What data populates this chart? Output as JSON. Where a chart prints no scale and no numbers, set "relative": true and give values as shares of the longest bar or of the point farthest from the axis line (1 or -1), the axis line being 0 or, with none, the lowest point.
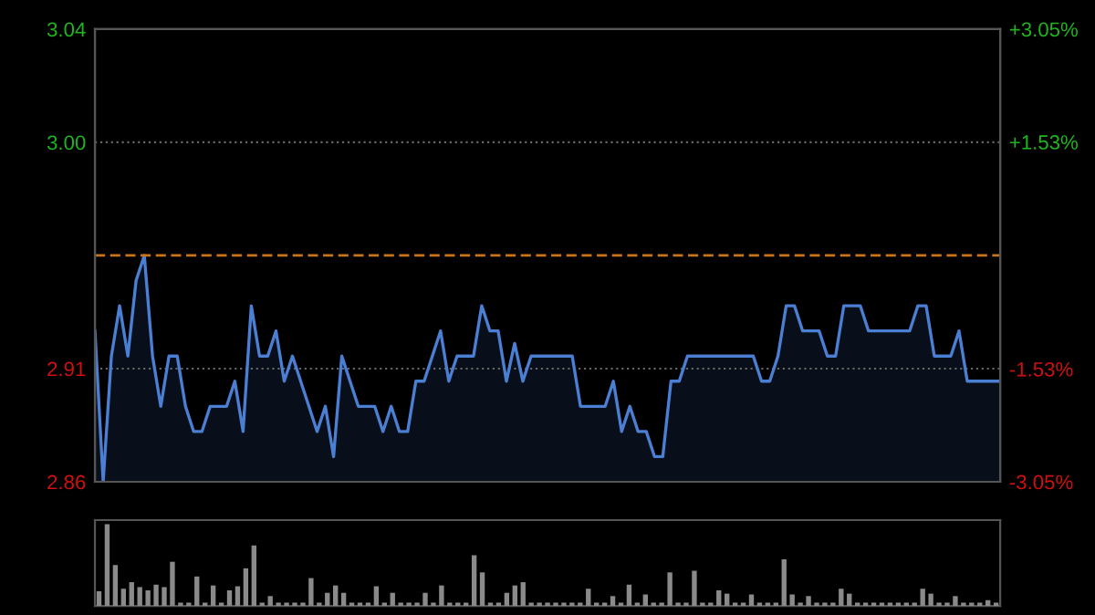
{
  "chart_data": [
    {
      "type": "area",
      "categories": [
        null,
        null,
        null,
        null,
        null,
        null,
        null,
        null,
        null,
        null,
        null,
        null,
        null,
        null,
        null,
        null,
        null,
        null,
        null,
        null,
        null,
        null,
        null,
        null,
        null,
        null,
        null,
        null,
        null,
        null,
        null,
        null,
        null,
        null,
        null,
        null,
        null,
        null,
        null,
        null,
        null,
        null,
        null,
        null,
        null,
        null,
        null,
        null,
        null,
        null,
        null,
        null,
        null,
        null,
        null,
        null,
        null,
        null,
        null,
        null,
        null,
        null,
        null,
        null,
        null,
        null,
        null,
        null,
        null,
        null,
        null,
        null,
        null,
        null,
        null,
        null,
        null,
        null,
        null,
        null,
        null,
        null,
        null,
        null,
        null,
        null,
        null,
        null,
        null,
        null,
        null,
        null,
        null,
        null,
        null,
        null,
        null,
        null,
        null,
        null,
        null,
        null,
        null,
        null,
        null,
        null,
        null,
        null,
        null,
        null,
        null
      ],
      "series": [
        {
          "color": "#4a7fd4",
          "values": [
            2.925,
            2.865,
            2.915,
            2.935,
            2.915,
            2.945,
            2.955,
            2.915,
            2.895,
            2.915,
            2.915,
            2.895,
            2.885,
            2.885,
            2.895,
            2.895,
            2.895,
            2.905,
            2.885,
            2.935,
            2.915,
            2.915,
            2.925,
            2.905,
            2.915,
            2.905,
            2.895,
            2.885,
            2.895,
            2.875,
            2.915,
            2.905,
            2.895,
            2.895,
            2.895,
            2.885,
            2.895,
            2.885,
            2.885,
            2.905,
            2.905,
            2.915,
            2.925,
            2.905,
            2.915,
            2.915,
            2.915,
            2.935,
            2.925,
            2.925,
            2.905,
            2.92,
            2.905,
            2.915,
            2.915,
            2.915,
            2.915,
            2.915,
            2.915,
            2.895,
            2.895,
            2.895,
            2.895,
            2.905,
            2.885,
            2.895,
            2.885,
            2.885,
            2.875,
            2.875,
            2.905,
            2.905,
            2.915,
            2.915,
            2.915,
            2.915,
            2.915,
            2.915,
            2.915,
            2.915,
            2.915,
            2.905,
            2.905,
            2.915,
            2.935,
            2.935,
            2.925,
            2.925,
            2.925,
            2.915,
            2.915,
            2.935,
            2.935,
            2.935,
            2.925,
            2.925,
            2.925,
            2.925,
            2.925,
            2.925,
            2.935,
            2.935,
            2.915,
            2.915,
            2.915,
            2.925,
            2.905,
            2.905,
            2.905,
            2.905,
            2.905
          ]
        }
      ],
      "ylim": [
        2.865,
        3.045
      ],
      "yticks": [
        {
          "value": 2.865,
          "label": "2.86"
        },
        {
          "value": 2.91,
          "label": "2.91"
        },
        {
          "value": 3.0,
          "label": "3.00"
        },
        {
          "value": 3.045,
          "label": "3.04"
        }
      ],
      "y2lim": [
        -3.05,
        3.05
      ],
      "y2ticks": [
        {
          "value": -3.05,
          "label": "-3.05%"
        },
        {
          "value": -1.53,
          "label": "-1.53%"
        },
        {
          "value": 1.53,
          "label": "+1.53%"
        },
        {
          "value": 3.05,
          "label": "+3.05%"
        }
      ],
      "ref_lines": [
        {
          "axis": "y",
          "value": 2.955,
          "color": "#c8741a",
          "line_style": "dashed"
        }
      ],
      "grid": true,
      "marker": "none",
      "line_style": "solid"
    },
    {
      "type": "bar",
      "relative": true,
      "grid": "x",
      "categories": [
        null,
        null,
        null,
        null,
        null,
        null,
        null,
        null,
        null,
        null,
        null,
        null,
        null,
        null,
        null,
        null,
        null,
        null,
        null,
        null,
        null,
        null,
        null,
        null,
        null,
        null,
        null,
        null,
        null,
        null,
        null,
        null,
        null,
        null,
        null,
        null,
        null,
        null,
        null,
        null,
        null,
        null,
        null,
        null,
        null,
        null,
        null,
        null,
        null,
        null,
        null,
        null,
        null,
        null,
        null,
        null,
        null,
        null,
        null,
        null,
        null,
        null,
        null,
        null,
        null,
        null,
        null,
        null,
        null,
        null,
        null,
        null,
        null,
        null,
        null,
        null,
        null,
        null,
        null,
        null,
        null,
        null,
        null,
        null,
        null,
        null,
        null,
        null,
        null,
        null,
        null,
        null,
        null,
        null,
        null,
        null,
        null,
        null,
        null,
        null,
        null,
        null,
        null,
        null,
        null,
        null,
        null,
        null,
        null,
        null,
        null
      ],
      "series": [
        {
          "color": "#8a8a8a",
          "values": [
            0.18,
            1,
            0.5,
            0.21,
            0.29,
            0.23,
            0.19,
            0.26,
            0.23,
            0.54,
            0.04,
            0.04,
            0.36,
            0.04,
            0.25,
            0.04,
            0.19,
            0.24,
            0.46,
            0.74,
            0.04,
            0.12,
            0.04,
            0.04,
            0.04,
            0.04,
            0.34,
            0.04,
            0.16,
            0.25,
            0.16,
            0.04,
            0.04,
            0.04,
            0.24,
            0.04,
            0.16,
            0.04,
            0.04,
            0.04,
            0.16,
            0.04,
            0.25,
            0.04,
            0.04,
            0.04,
            0.62,
            0.41,
            0.04,
            0.04,
            0.16,
            0.25,
            0.29,
            0.04,
            0.04,
            0.04,
            0.04,
            0.04,
            0.04,
            0.04,
            0.21,
            0.04,
            0.04,
            0.12,
            0.04,
            0.26,
            0.04,
            0.14,
            0.04,
            0.04,
            0.41,
            0.04,
            0.04,
            0.43,
            0.04,
            0.04,
            0.19,
            0.15,
            0.04,
            0.04,
            0.14,
            0.04,
            0.04,
            0.04,
            0.57,
            0.14,
            0.04,
            0.12,
            0.04,
            0.04,
            0.04,
            0.21,
            0.15,
            0.04,
            0.04,
            0.04,
            0.04,
            0.04,
            0.04,
            0.04,
            0.04,
            0.21,
            0.15,
            0.04,
            0.04,
            0.12,
            0.04,
            0.04,
            0.04,
            0.07,
            0.04
          ]
        }
      ]
    }
  ]
}
